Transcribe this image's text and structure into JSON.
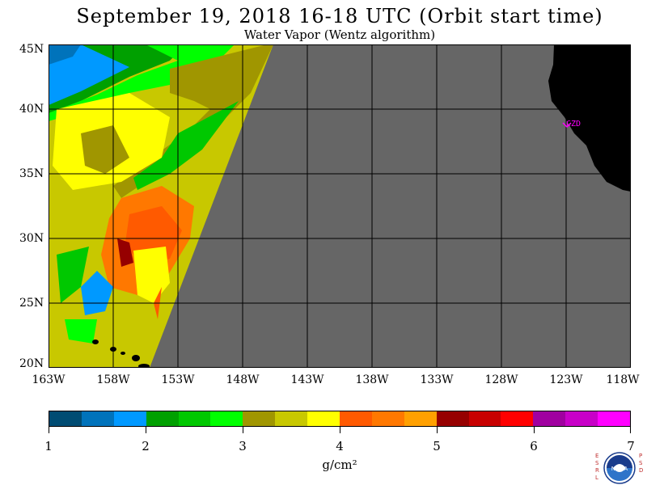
{
  "header": {
    "title": "September 19, 2018  16-18 UTC  (Orbit start time)",
    "subtitle": "Water Vapor (Wentz algorithm)"
  },
  "map": {
    "lat_labels": [
      "45N",
      "40N",
      "35N",
      "30N",
      "25N",
      "20N"
    ],
    "lon_labels": [
      "163W",
      "158W",
      "153W",
      "148W",
      "143W",
      "138W",
      "133W",
      "128W",
      "123W",
      "118W"
    ],
    "station_label": "CZD",
    "colors": {
      "no_data": "#666666",
      "land": "#000000",
      "grid": "#000000",
      "station": "#ff00ff"
    }
  },
  "colorbar": {
    "ticks": [
      "1",
      "2",
      "3",
      "4",
      "5",
      "6",
      "7"
    ],
    "units": "g/cm²",
    "colors": [
      "#004c73",
      "#0073bb",
      "#0099ff",
      "#00a000",
      "#00c800",
      "#00ff00",
      "#a09600",
      "#c8c800",
      "#ffff00",
      "#ff5a00",
      "#ff7800",
      "#ffa000",
      "#960000",
      "#c80000",
      "#ff0000",
      "#a000a0",
      "#c800c8",
      "#ff00ff"
    ]
  },
  "logo": {
    "left_letters": "ESRL",
    "right_letters": "PSD",
    "center_text": "NOAA"
  }
}
